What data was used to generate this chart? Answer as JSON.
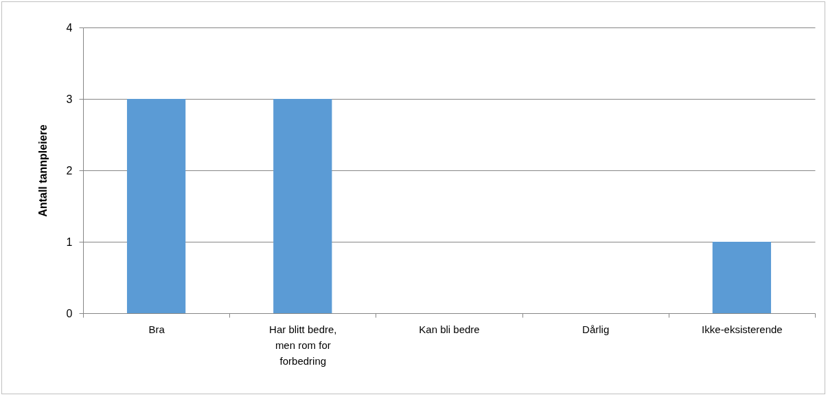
{
  "chart_data": {
    "type": "bar",
    "ylabel": "Antall tannpleiere",
    "categories": [
      "Bra",
      "Har blitt bedre, men rom for forbedring",
      "Kan bli bedre",
      "Dårlig",
      "Ikke-eksisterende"
    ],
    "values": [
      3,
      3,
      0,
      0,
      1
    ],
    "color": "#5b9bd5",
    "ylim": [
      0,
      4
    ],
    "yticks": [
      0,
      1,
      2,
      3,
      4
    ],
    "grid": "y"
  }
}
